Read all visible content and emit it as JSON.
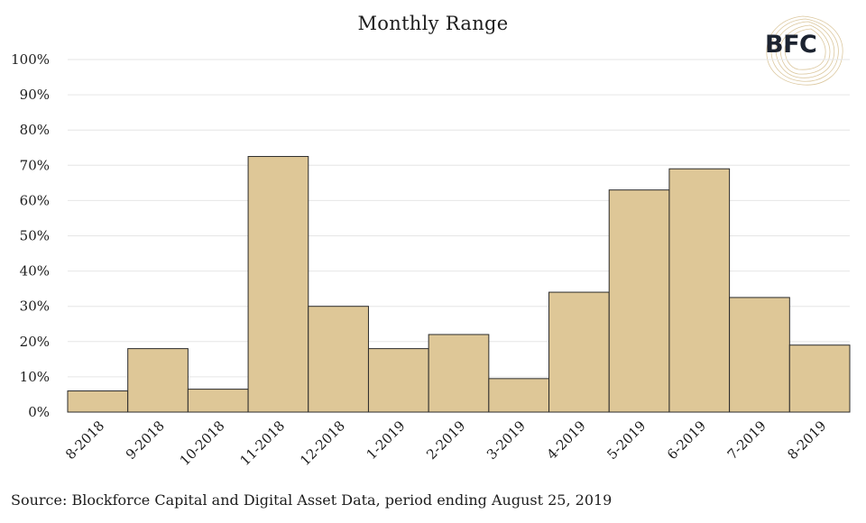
{
  "chart_data": {
    "type": "bar",
    "title": "Monthly Range",
    "categories": [
      "8-2018",
      "9-2018",
      "10-2018",
      "11-2018",
      "12-2018",
      "1-2019",
      "2-2019",
      "3-2019",
      "4-2019",
      "5-2019",
      "6-2019",
      "7-2019",
      "8-2019"
    ],
    "values": [
      6,
      18,
      6.5,
      72.5,
      30,
      18,
      22,
      9.5,
      34,
      63,
      69,
      32.5,
      19
    ],
    "ylim": [
      0,
      100
    ],
    "yticks": [
      "0%",
      "10%",
      "20%",
      "30%",
      "40%",
      "50%",
      "60%",
      "70%",
      "80%",
      "90%",
      "100%"
    ],
    "ytick_values": [
      0,
      10,
      20,
      30,
      40,
      50,
      60,
      70,
      80,
      90,
      100
    ],
    "grid": true,
    "legend": "none",
    "bar_color": "#dec797",
    "bar_edge_color": "#2b2b2b",
    "grid_color": "#e6e6e6"
  },
  "source": "Source: Blockforce Capital and Digital Asset Data, period ending August 25, 2019",
  "logo": {
    "text": "BFC",
    "icon": "bfc-logo-icon",
    "color": "#1c2330",
    "accent": "#d8c294"
  }
}
